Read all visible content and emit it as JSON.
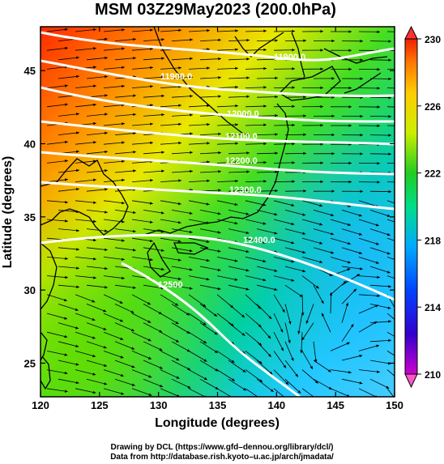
{
  "title": "MSM 03Z29May2023 (200.0hPa)",
  "xlabel": "Longitude (degrees)",
  "ylabel": "Latitude (degrees)",
  "x_ticks": [
    "120",
    "125",
    "130",
    "135",
    "140",
    "145",
    "150"
  ],
  "y_ticks": [
    "25",
    "30",
    "35",
    "40",
    "45"
  ],
  "colorbar": {
    "ticks": [
      "210",
      "214",
      "218",
      "222",
      "226",
      "230"
    ],
    "min": 210,
    "max": 230,
    "colors": [
      "#cc00cc",
      "#3300cc",
      "#0033ff",
      "#00aaff",
      "#00dd88",
      "#22cc22",
      "#ccee00",
      "#ffcc00",
      "#ff7700",
      "#ee2200"
    ]
  },
  "contours": [
    {
      "label": "11900.0"
    },
    {
      "label": "11900.0"
    },
    {
      "label": "12000.0"
    },
    {
      "label": "12100.0"
    },
    {
      "label": "12200.0"
    },
    {
      "label": "12300.0"
    },
    {
      "label": "12400.0"
    },
    {
      "label": "12500"
    }
  ],
  "footer": {
    "line1": "Drawing by DCL (https://www.gfd–dennou.org/library/dcl/)",
    "line2": "Data from http://database.rish.kyoto–u.ac.jp/arch/jmadata/"
  }
}
